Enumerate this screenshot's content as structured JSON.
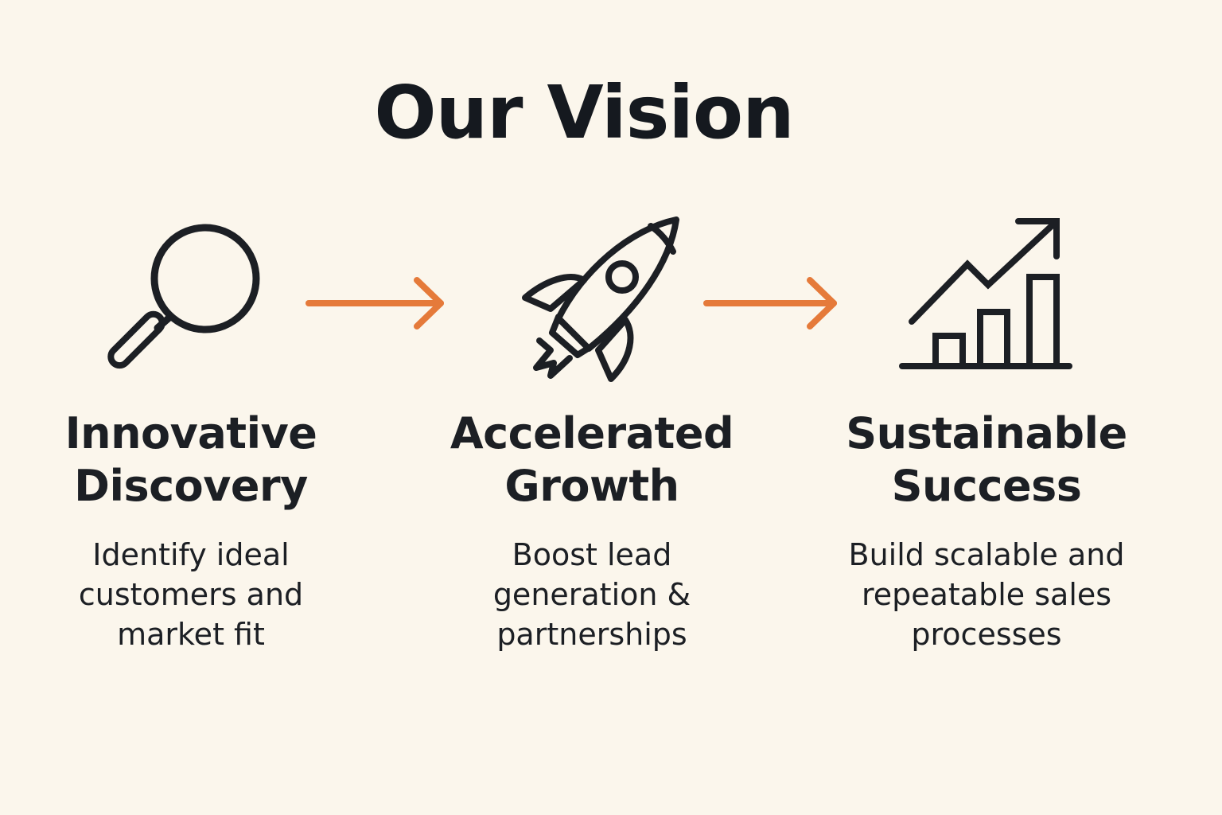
{
  "title": "Our Vision",
  "colors": {
    "background": "#fbf6ec",
    "text": "#1c1f24",
    "arrow": "#e57a3a",
    "icon_stroke": "#1c1f24"
  },
  "steps": [
    {
      "icon": "magnifying-glass-icon",
      "title_line1": "Innovative",
      "title_line2": "Discovery",
      "desc_line1": "Identify ideal",
      "desc_line2": "customers and",
      "desc_line3": "market fit"
    },
    {
      "icon": "rocket-icon",
      "title_line1": "Accelerated",
      "title_line2": "Growth",
      "desc_line1": "Boost lead",
      "desc_line2": "generation &",
      "desc_line3": "partnerships"
    },
    {
      "icon": "growth-chart-icon",
      "title_line1": "Sustainable",
      "title_line2": "Success",
      "desc_line1": "Build scalable and",
      "desc_line2": "repeatable sales",
      "desc_line3": "processes"
    }
  ]
}
